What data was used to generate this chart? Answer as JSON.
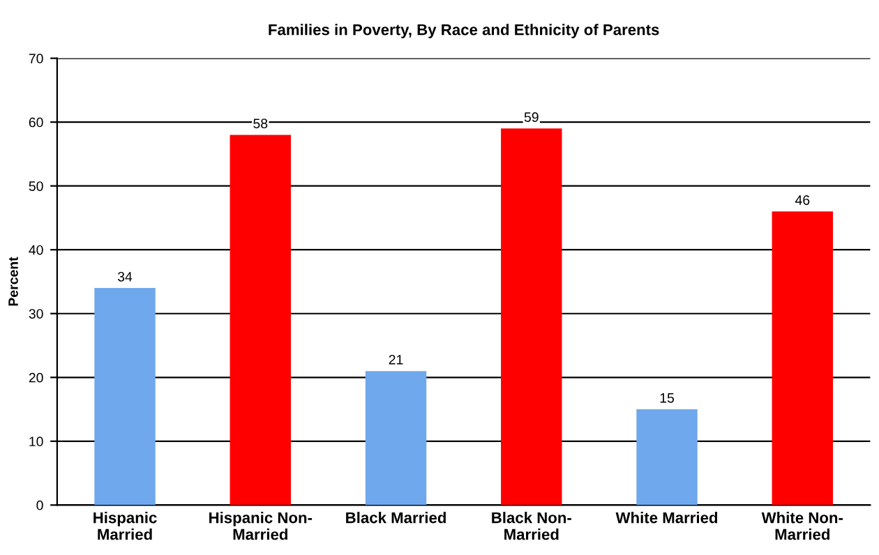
{
  "chart_data": {
    "type": "bar",
    "title": "Families in Poverty, By Race and Ethnicity of Parents",
    "ylabel": "Percent",
    "categories": [
      "Hispanic Married",
      "Hispanic Non-Married",
      "Black Married",
      "Black Non-Married",
      "White Married",
      "White Non-Married"
    ],
    "values": [
      34,
      58,
      21,
      59,
      15,
      46
    ],
    "colors": [
      "#6fa8ec",
      "#ff0000",
      "#6fa8ec",
      "#ff0000",
      "#6fa8ec",
      "#ff0000"
    ],
    "ylim": [
      0,
      70
    ],
    "yticks": [
      0,
      10,
      20,
      30,
      40,
      50,
      60,
      70
    ],
    "grid": "y",
    "data_labels": true
  }
}
